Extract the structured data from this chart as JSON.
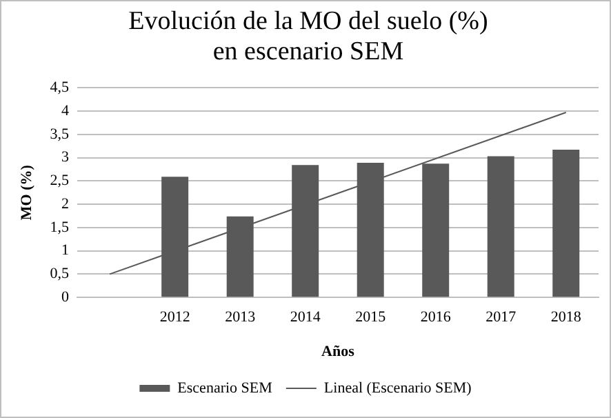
{
  "chart_data": {
    "type": "bar",
    "title": "Evolución de la MO del suelo (%) en escenario SEM",
    "xlabel": "Años",
    "ylabel": "MO (%)",
    "categories": [
      null,
      "2012",
      "2013",
      "2014",
      "2015",
      "2016",
      "2017",
      "2018"
    ],
    "series": [
      {
        "name": "Escenario SEM",
        "color": "#595959",
        "values": [
          null,
          2.59,
          1.74,
          2.84,
          2.89,
          2.87,
          3.03,
          3.17
        ]
      },
      {
        "name": "Lineal (Escenario SEM)",
        "type": "line",
        "color": "#595959",
        "values": [
          0.5,
          null,
          null,
          null,
          null,
          null,
          null,
          3.97
        ]
      }
    ],
    "ylim": [
      0,
      4.5
    ],
    "yticks": [
      0,
      {
        "value": 0.5,
        "label": "0,5"
      },
      1,
      {
        "value": 1.5,
        "label": "1,5"
      },
      2,
      {
        "value": 2.5,
        "label": "2,5"
      },
      3,
      {
        "value": 3.5,
        "label": "3,5"
      },
      4,
      {
        "value": 4.5,
        "label": "4,5"
      }
    ],
    "grid": "y",
    "legend": "bottom",
    "marker": "none",
    "line_style": "solid"
  }
}
